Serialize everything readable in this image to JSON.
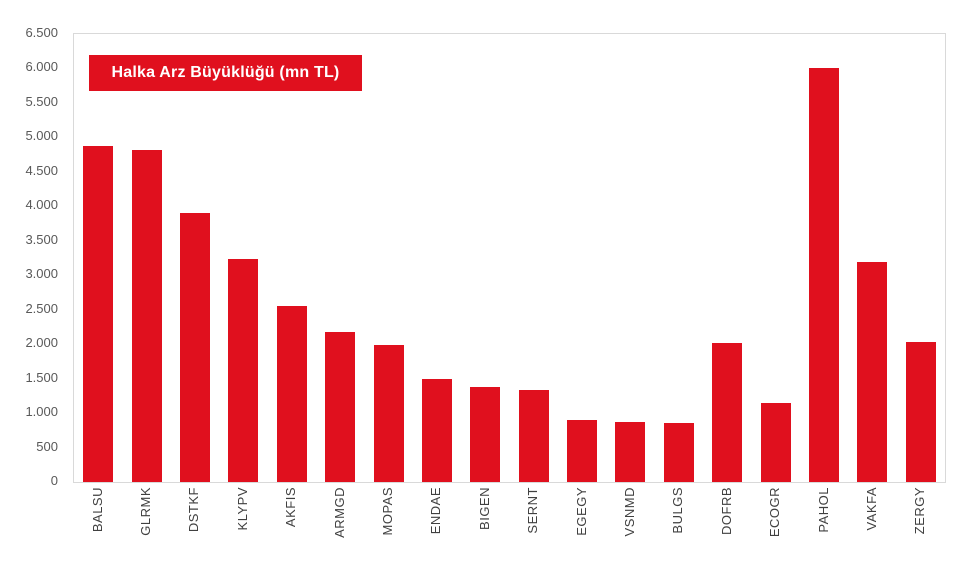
{
  "chart_data": {
    "type": "bar",
    "title": "",
    "legend": "Halka Arz Büyüklüğü (mn TL)",
    "legend_position": "top-left-inside",
    "legend_bg": "#e0101e",
    "legend_text_color": "#ffffff",
    "bar_color": "#e0101e",
    "axis_label_color": "#595959",
    "category_label_color": "#404040",
    "plot_border_color": "#d9d9d9",
    "grid": false,
    "ylim": [
      0,
      6500
    ],
    "ytick_step": 500,
    "ytick_labels": [
      "0",
      "500",
      "1.000",
      "1.500",
      "2.000",
      "2.500",
      "3.000",
      "3.500",
      "4.000",
      "4.500",
      "5.000",
      "5.500",
      "6.000",
      "6.500"
    ],
    "categories": [
      "BALSU",
      "GLRMK",
      "DSTKF",
      "KLYPV",
      "AKFIS",
      "ARMGD",
      "MOPAS",
      "ENDAE",
      "BIGEN",
      "SERNT",
      "EGEGY",
      "VSNMD",
      "BULGS",
      "DOFRB",
      "ECOGR",
      "PAHOL",
      "VAKFA",
      "ZERGY"
    ],
    "values": [
      4870,
      4820,
      3900,
      3240,
      2560,
      2180,
      1990,
      1500,
      1380,
      1330,
      900,
      870,
      850,
      2020,
      1140,
      6000,
      3190,
      2030
    ],
    "xlabel": "",
    "ylabel": ""
  }
}
